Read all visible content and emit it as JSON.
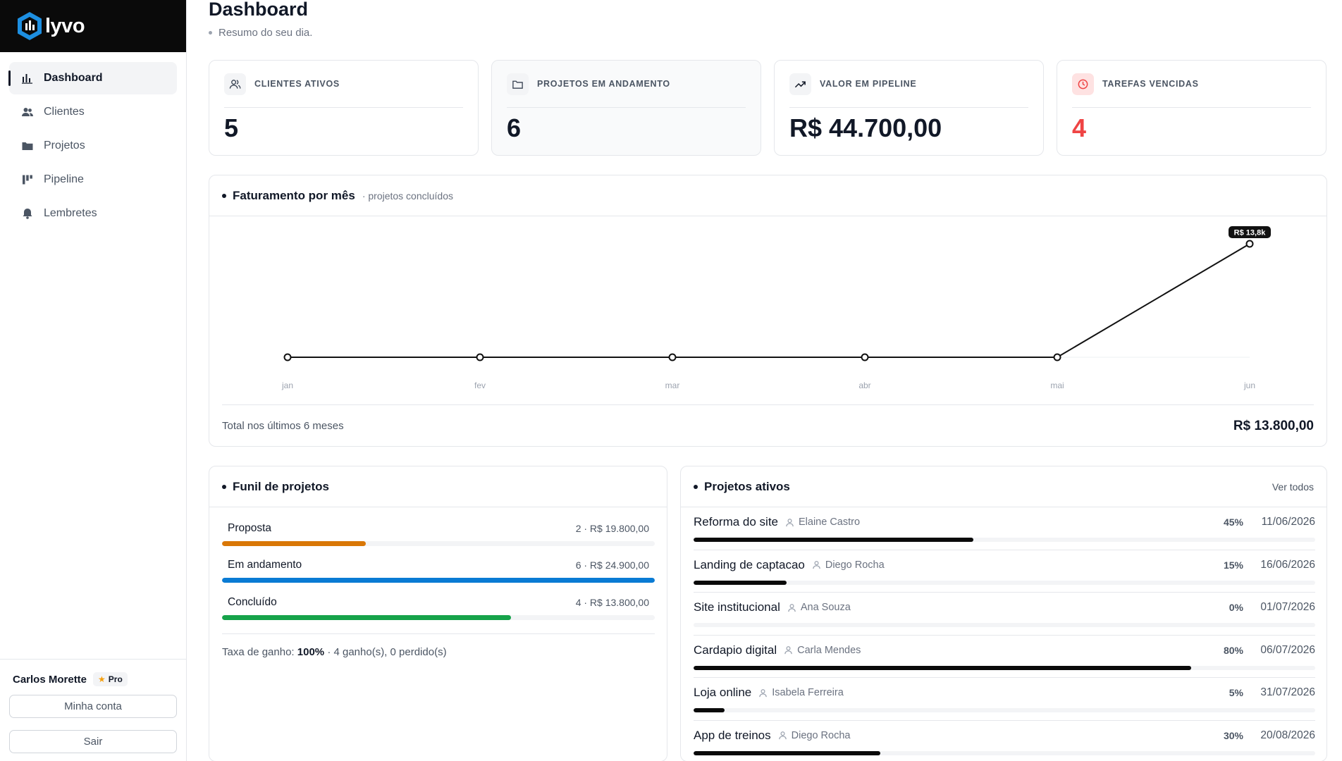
{
  "app": {
    "name": "lyvo"
  },
  "sidebar": {
    "items": [
      {
        "label": "Dashboard",
        "icon": "bar-chart-icon",
        "active": true
      },
      {
        "label": "Clientes",
        "icon": "users-icon",
        "active": false
      },
      {
        "label": "Projetos",
        "icon": "folder-icon",
        "active": false
      },
      {
        "label": "Pipeline",
        "icon": "kanban-icon",
        "active": false
      },
      {
        "label": "Lembretes",
        "icon": "bell-icon",
        "active": false
      }
    ],
    "user": {
      "name": "Carlos Morette",
      "badge": "Pro",
      "badge_icon": "star-icon"
    },
    "account_button": "Minha conta",
    "logout_button": "Sair"
  },
  "header": {
    "title": "Dashboard",
    "subtitle": "Resumo do seu dia."
  },
  "stats": [
    {
      "label": "CLIENTES ATIVOS",
      "value": "5",
      "icon": "users-icon"
    },
    {
      "label": "PROJETOS EM ANDAMENTO",
      "value": "6",
      "icon": "folder-icon"
    },
    {
      "label": "VALOR EM PIPELINE",
      "value": "R$ 44.700,00",
      "icon": "trending-up-icon"
    },
    {
      "label": "TAREFAS VENCIDAS",
      "value": "4",
      "icon": "clock-icon",
      "color": "#ef4444"
    }
  ],
  "revenue": {
    "title": "Faturamento por mês",
    "note": "· projetos concluídos",
    "total_label": "Total nos últimos 6 meses",
    "total_value": "R$ 13.800,00"
  },
  "chart_data": {
    "type": "line",
    "categories": [
      "jan",
      "fev",
      "mar",
      "abr",
      "mai",
      "jun"
    ],
    "values": [
      0,
      0,
      0,
      0,
      0,
      13800
    ],
    "ylim": [
      0,
      13800
    ],
    "annotations": [
      {
        "x": "jun",
        "text": "R$ 13,8k"
      }
    ],
    "grid": false,
    "color": "#111111"
  },
  "funnel": {
    "title": "Funil de projetos",
    "stages": [
      {
        "name": "Proposta",
        "meta": "2 · R$ 19.800,00",
        "fill": 0.333,
        "color": "#d97706"
      },
      {
        "name": "Em andamento",
        "meta": "6 · R$ 24.900,00",
        "fill": 1.0,
        "color": "#0a7bd4"
      },
      {
        "name": "Concluído",
        "meta": "4 · R$ 13.800,00",
        "fill": 0.667,
        "color": "#16a34a"
      }
    ],
    "win_label": "Taxa de ganho:",
    "win_value": "100%",
    "win_detail": "· 4 ganho(s), 0 perdido(s)"
  },
  "projects": {
    "title": "Projetos ativos",
    "view_all": "Ver todos",
    "items": [
      {
        "name": "Reforma do site",
        "owner": "Elaine Castro",
        "progress": "45%",
        "fill": 0.45,
        "date": "11/06/2026"
      },
      {
        "name": "Landing de captacao",
        "owner": "Diego Rocha",
        "progress": "15%",
        "fill": 0.15,
        "date": "16/06/2026"
      },
      {
        "name": "Site institucional",
        "owner": "Ana Souza",
        "progress": "0%",
        "fill": 0.0,
        "date": "01/07/2026"
      },
      {
        "name": "Cardapio digital",
        "owner": "Carla Mendes",
        "progress": "80%",
        "fill": 0.8,
        "date": "06/07/2026"
      },
      {
        "name": "Loja online",
        "owner": "Isabela Ferreira",
        "progress": "5%",
        "fill": 0.05,
        "date": "31/07/2026"
      },
      {
        "name": "App de treinos",
        "owner": "Diego Rocha",
        "progress": "30%",
        "fill": 0.3,
        "date": "20/08/2026"
      }
    ]
  }
}
